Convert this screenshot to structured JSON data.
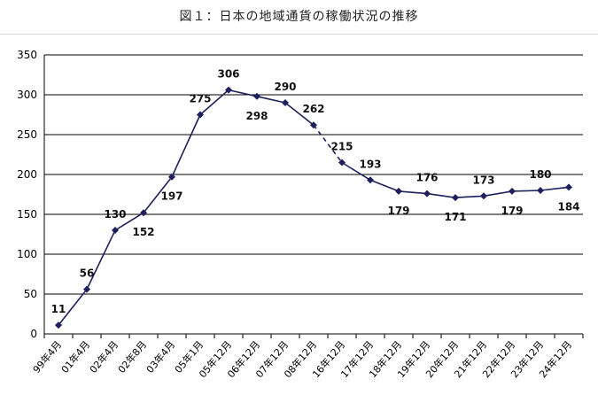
{
  "chart_data": {
    "type": "line",
    "title": "図１：日本の地域通貨の稼働状況の推移",
    "categories": [
      "99年4月",
      "01年4月",
      "02年4月",
      "02年8月",
      "03年4月",
      "05年1月",
      "05年12月",
      "06年12月",
      "07年12月",
      "08年12月",
      "16年12月",
      "17年12月",
      "18年12月",
      "19年12月",
      "20年12月",
      "21年12月",
      "22年12月",
      "23年12月",
      "24年12月"
    ],
    "series": [
      {
        "values": [
          11,
          56,
          130,
          152,
          197,
          275,
          306,
          298,
          290,
          262,
          215,
          193,
          179,
          176,
          171,
          173,
          179,
          180,
          184
        ]
      }
    ],
    "label_position": [
      "above",
      "above",
      "above",
      "below",
      "below",
      "above",
      "above",
      "below",
      "above",
      "above",
      "above",
      "above",
      "below",
      "above",
      "below",
      "above",
      "below",
      "above",
      "below"
    ],
    "dashed_segment": [
      "08年12月",
      "16年12月"
    ],
    "yticks": [
      0,
      50,
      100,
      150,
      200,
      250,
      300,
      350
    ],
    "ylim": [
      0,
      350
    ],
    "grid": true,
    "legend": "none",
    "line_color": "#1f1f5e"
  }
}
